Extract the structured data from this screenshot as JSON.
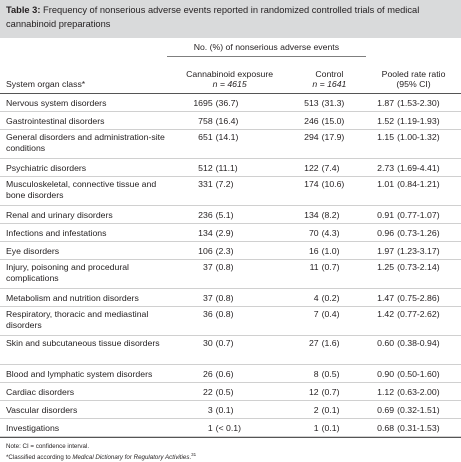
{
  "caption": {
    "label": "Table 3:",
    "text": "Frequency of nonserious adverse events reported in randomized controlled trials of medical cannabinoid preparations"
  },
  "header": {
    "group": "No. (%) of nonserious adverse events",
    "col1": "System organ class*",
    "col2_line1": "Cannabinoid exposure",
    "col2_n_label": "n",
    "col2_n_value": "= 4615",
    "col3_line1": "Control",
    "col3_n_label": "n",
    "col3_n_value": "= 1641",
    "col4_line1": "Pooled rate ratio",
    "col4_line2": "(95% CI)"
  },
  "rows": [
    {
      "organ": "Nervous system disorders",
      "cn": "1695",
      "cp": "(36.7)",
      "kn": "513",
      "kp": "(31.3)",
      "rr": "1.87",
      "ci": "(1.53-2.30)"
    },
    {
      "organ": "Gastrointestinal disorders",
      "cn": "758",
      "cp": "(16.4)",
      "kn": "246",
      "kp": "(15.0)",
      "rr": "1.52",
      "ci": "(1.19-1.93)"
    },
    {
      "organ": "General disorders and administration-site conditions",
      "cn": "651",
      "cp": "(14.1)",
      "kn": "294",
      "kp": "(17.9)",
      "rr": "1.15",
      "ci": "(1.00-1.32)"
    },
    {
      "organ": "Psychiatric disorders",
      "cn": "512",
      "cp": "(11.1)",
      "kn": "122",
      "kp": "(7.4)",
      "rr": "2.73",
      "ci": "(1.69-4.41)"
    },
    {
      "organ": "Musculoskeletal, connective tissue and bone disorders",
      "cn": "331",
      "cp": "(7.2)",
      "kn": "174",
      "kp": "(10.6)",
      "rr": "1.01",
      "ci": "(0.84-1.21)"
    },
    {
      "organ": "Renal and urinary disorders",
      "cn": "236",
      "cp": "(5.1)",
      "kn": "134",
      "kp": "(8.2)",
      "rr": "0.91",
      "ci": "(0.77-1.07)"
    },
    {
      "organ": "Infections and infestations",
      "cn": "134",
      "cp": "(2.9)",
      "kn": "70",
      "kp": "(4.3)",
      "rr": "0.96",
      "ci": "(0.73-1.26)"
    },
    {
      "organ": "Eye disorders",
      "cn": "106",
      "cp": "(2.3)",
      "kn": "16",
      "kp": "(1.0)",
      "rr": "1.97",
      "ci": "(1.23-3.17)"
    },
    {
      "organ": "Injury, poisoning and procedural complications",
      "cn": "37",
      "cp": "(0.8)",
      "kn": "11",
      "kp": "(0.7)",
      "rr": "1.25",
      "ci": "(0.73-2.14)"
    },
    {
      "organ": "Metabolism and nutrition disorders",
      "cn": "37",
      "cp": "(0.8)",
      "kn": "4",
      "kp": "(0.2)",
      "rr": "1.47",
      "ci": "(0.75-2.86)"
    },
    {
      "organ": "Respiratory, thoracic and mediastinal disorders",
      "cn": "36",
      "cp": "(0.8)",
      "kn": "7",
      "kp": "(0.4)",
      "rr": "1.42",
      "ci": "(0.77-2.62)"
    },
    {
      "organ": "Skin and subcutaneous tissue disorders",
      "cn": "30",
      "cp": "(0.7)",
      "kn": "27",
      "kp": "(1.6)",
      "rr": "0.60",
      "ci": "(0.38-0.94)"
    },
    {
      "organ": "Blood and lymphatic system disorders",
      "cn": "26",
      "cp": "(0.6)",
      "kn": "8",
      "kp": "(0.5)",
      "rr": "0.90",
      "ci": "(0.50-1.60)"
    },
    {
      "organ": "Cardiac disorders",
      "cn": "22",
      "cp": "(0.5)",
      "kn": "12",
      "kp": "(0.7)",
      "rr": "1.12",
      "ci": "(0.63-2.00)"
    },
    {
      "organ": "Vascular disorders",
      "cn": "3",
      "cp": "(0.1)",
      "kn": "2",
      "kp": "(0.1)",
      "rr": "0.69",
      "ci": "(0.32-1.51)"
    },
    {
      "organ": "Investigations",
      "cn": "1",
      "cp": "(< 0.1)",
      "kn": "1",
      "kp": "(0.1)",
      "rr": "0.68",
      "ci": "(0.31-1.53)"
    }
  ],
  "footnotes": {
    "note": "Note: CI = confidence interval.",
    "star_prefix": "*Classified according to ",
    "star_italic": "Medical Dictionary for Regulatory Activities",
    "star_suffix": ".",
    "star_ref": "31"
  }
}
